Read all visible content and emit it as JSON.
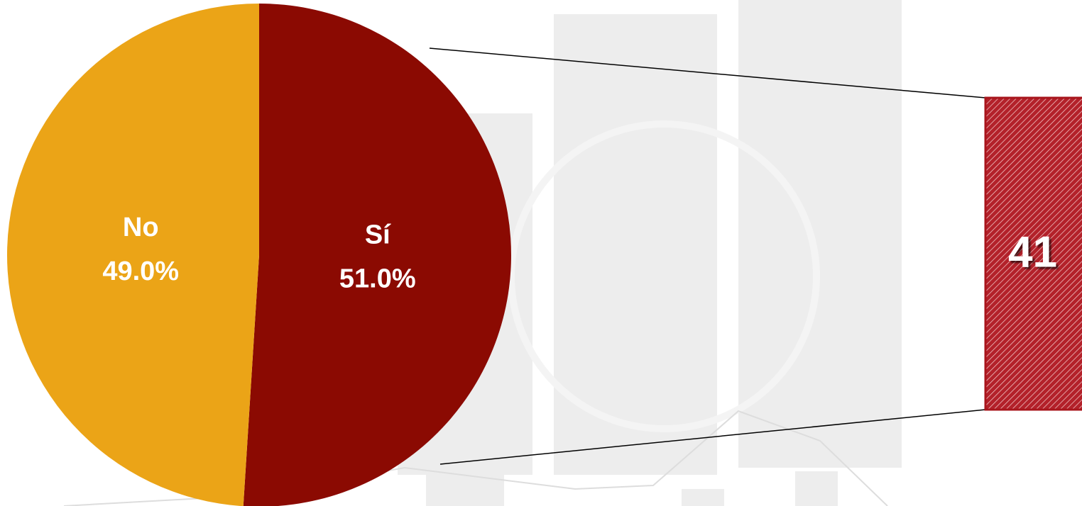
{
  "chart_data": {
    "type": "pie",
    "categories": [
      "Sí",
      "No"
    ],
    "values": [
      51.0,
      49.0
    ],
    "value_labels": [
      "51.0%",
      "49.0%"
    ],
    "colors": [
      "#8b0a02",
      "#eba417"
    ],
    "callout": "41"
  }
}
